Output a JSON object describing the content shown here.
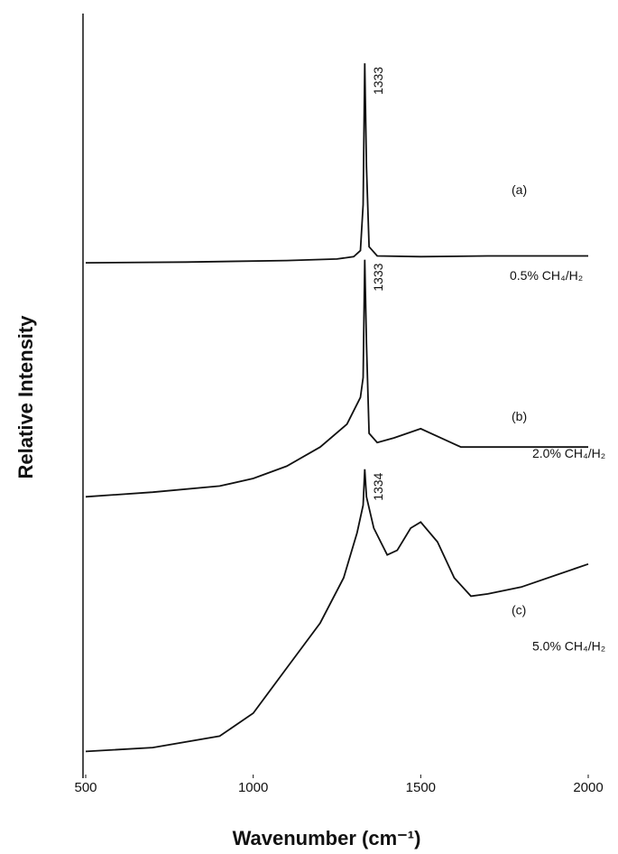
{
  "chart_data": {
    "type": "line",
    "xlabel": "Wavenumber (cm⁻¹)",
    "ylabel": "Relative Intensity",
    "xlim": [
      500,
      2000
    ],
    "xticks": [
      500,
      1000,
      1500,
      2000
    ],
    "ylim": [
      0,
      100
    ],
    "series": [
      {
        "name": "(a)",
        "label": "0.5% CH₄/H₂",
        "peak_label": "1333",
        "color": "#111111",
        "x": [
          500,
          800,
          1100,
          1250,
          1300,
          1320,
          1328,
          1333,
          1338,
          1346,
          1370,
          1500,
          1700,
          2000
        ],
        "values": [
          67.4,
          67.5,
          67.7,
          67.9,
          68.2,
          69,
          75,
          93.5,
          80,
          69.5,
          68.3,
          68.2,
          68.3,
          68.3
        ]
      },
      {
        "name": "(b)",
        "label": "2.0% CH₄/H₂",
        "peak_label": "1333",
        "color": "#111111",
        "x": [
          500,
          700,
          900,
          1000,
          1100,
          1200,
          1280,
          1320,
          1328,
          1333,
          1338,
          1346,
          1370,
          1420,
          1500,
          1560,
          1620,
          1700,
          2000
        ],
        "values": [
          36.8,
          37.4,
          38.2,
          39.2,
          40.8,
          43.3,
          46.3,
          49.8,
          52.4,
          67.8,
          56.9,
          45.1,
          43.9,
          44.5,
          45.7,
          44.5,
          43.3,
          43.3,
          43.3
        ]
      },
      {
        "name": "(c)",
        "label": "5.0% CH₄/H₂",
        "peak_label": "1334",
        "color": "#111111",
        "x": [
          500,
          700,
          900,
          1000,
          1100,
          1200,
          1270,
          1310,
          1328,
          1333,
          1338,
          1360,
          1400,
          1430,
          1470,
          1500,
          1550,
          1600,
          1650,
          1700,
          1800,
          2000
        ],
        "values": [
          3.5,
          4.0,
          5.5,
          8.5,
          14.4,
          20.3,
          26.2,
          32.1,
          35.7,
          40.4,
          36.8,
          32.7,
          29.2,
          29.8,
          32.7,
          33.5,
          30.9,
          26.2,
          23.8,
          24.1,
          25.0,
          28.0
        ]
      }
    ]
  }
}
